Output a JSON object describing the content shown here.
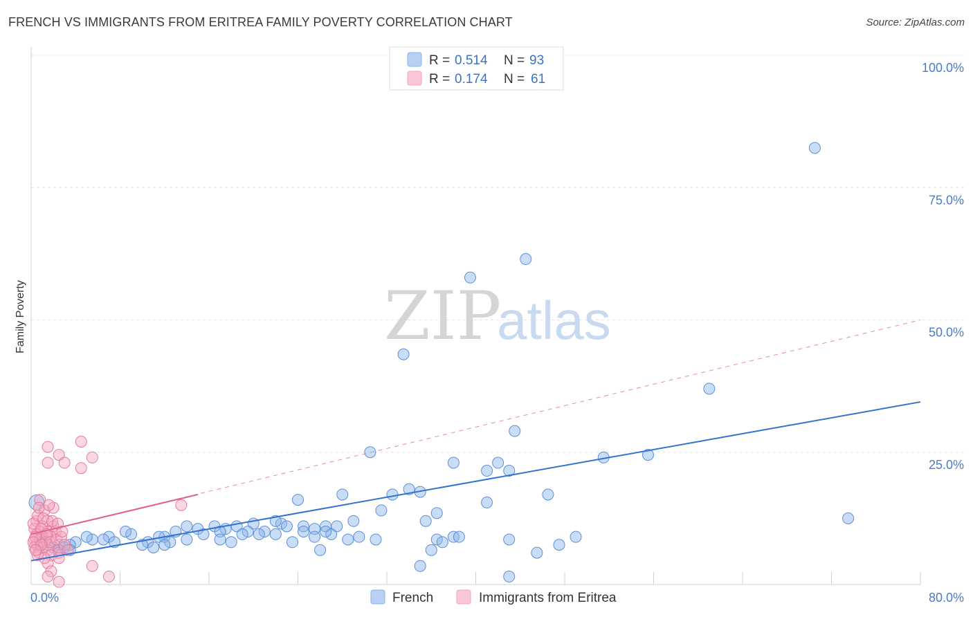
{
  "title": "FRENCH VS IMMIGRANTS FROM ERITREA FAMILY POVERTY CORRELATION CHART",
  "source": "Source: ZipAtlas.com",
  "watermark": {
    "zip": "ZIP",
    "atlas": "atlas"
  },
  "chart_data": {
    "type": "scatter",
    "title": "FRENCH VS IMMIGRANTS FROM ERITREA FAMILY POVERTY CORRELATION CHART",
    "xlabel": "",
    "ylabel": "Family Poverty",
    "xlim": [
      0,
      80
    ],
    "ylim": [
      0,
      100
    ],
    "x_tick_labels": {
      "min": "0.0%",
      "max": "80.0%"
    },
    "y_ticks": [
      {
        "value": 100,
        "label": "100.0%"
      },
      {
        "value": 75,
        "label": "75.0%"
      },
      {
        "value": 50,
        "label": "50.0%"
      },
      {
        "value": 25,
        "label": "25.0%"
      }
    ],
    "grid": true,
    "legend": [
      {
        "name": "French",
        "r_label": "R =",
        "r": "0.514",
        "n_label": "N =",
        "n": "93",
        "color": "#8ab4ea"
      },
      {
        "name": "Immigrants from Eritrea",
        "r_label": "R =",
        "r": "0.174",
        "n_label": "N =",
        "n": "61",
        "color": "#f4a6bf"
      }
    ],
    "series": [
      {
        "name": "French",
        "color": "#8ab4ea",
        "stroke": "#5b8fd6",
        "trendline": {
          "x": [
            0,
            80
          ],
          "y": [
            4.5,
            34.5
          ],
          "color": "#2f72d0"
        },
        "points": [
          [
            70.5,
            82.5
          ],
          [
            44.5,
            61.5
          ],
          [
            39.5,
            58
          ],
          [
            33.5,
            43.5
          ],
          [
            61,
            37
          ],
          [
            43.5,
            29
          ],
          [
            30.5,
            25
          ],
          [
            51.5,
            24
          ],
          [
            55.5,
            24.5
          ],
          [
            38,
            23
          ],
          [
            42,
            23
          ],
          [
            43,
            21.5
          ],
          [
            41,
            21.5
          ],
          [
            34,
            18
          ],
          [
            28,
            17
          ],
          [
            32.5,
            17
          ],
          [
            35,
            17.5
          ],
          [
            46.5,
            17
          ],
          [
            24,
            16
          ],
          [
            41,
            15.5
          ],
          [
            31.5,
            14
          ],
          [
            36.5,
            13.5
          ],
          [
            35.5,
            12
          ],
          [
            73.5,
            12.5
          ],
          [
            29,
            12
          ],
          [
            26.5,
            11
          ],
          [
            27.5,
            11
          ],
          [
            22.5,
            11.5
          ],
          [
            22,
            12
          ],
          [
            24.5,
            11
          ],
          [
            25.5,
            10.5
          ],
          [
            14,
            11
          ],
          [
            16.5,
            11
          ],
          [
            18.5,
            11
          ],
          [
            20,
            11.5
          ],
          [
            23,
            11
          ],
          [
            15,
            10.5
          ],
          [
            17.5,
            10.5
          ],
          [
            19.5,
            10
          ],
          [
            21,
            10
          ],
          [
            25.5,
            9
          ],
          [
            27,
            9.5
          ],
          [
            28.5,
            8.5
          ],
          [
            29.5,
            9
          ],
          [
            31,
            8.5
          ],
          [
            24.5,
            10
          ],
          [
            26.5,
            10
          ],
          [
            22,
            9.5
          ],
          [
            13,
            10
          ],
          [
            15.5,
            9.5
          ],
          [
            17,
            10
          ],
          [
            19,
            9.5
          ],
          [
            20.5,
            9.5
          ],
          [
            17,
            8.5
          ],
          [
            18,
            8
          ],
          [
            23.5,
            8
          ],
          [
            14,
            8.5
          ],
          [
            12,
            9
          ],
          [
            12.5,
            8
          ],
          [
            10.5,
            8
          ],
          [
            11.5,
            9
          ],
          [
            9,
            9.5
          ],
          [
            8.5,
            10
          ],
          [
            7,
            9
          ],
          [
            6.5,
            8.5
          ],
          [
            5.5,
            8.5
          ],
          [
            5,
            9
          ],
          [
            4,
            8
          ],
          [
            3.5,
            7.5
          ],
          [
            2.5,
            7.5
          ],
          [
            2,
            7
          ],
          [
            1.5,
            7.5
          ],
          [
            1,
            8
          ],
          [
            3,
            7
          ],
          [
            3.5,
            6.5
          ],
          [
            2.5,
            6.5
          ],
          [
            7.5,
            8
          ],
          [
            10,
            7.5
          ],
          [
            11,
            7
          ],
          [
            12,
            7.5
          ],
          [
            36.5,
            8.5
          ],
          [
            38,
            9
          ],
          [
            38.5,
            9
          ],
          [
            43,
            8.5
          ],
          [
            49,
            9
          ],
          [
            47.5,
            7.5
          ],
          [
            37,
            8
          ],
          [
            36,
            6.5
          ],
          [
            45.5,
            6
          ],
          [
            26,
            6.5
          ],
          [
            35,
            3.5
          ],
          [
            43,
            1.5
          ],
          [
            0.5,
            15.5
          ]
        ]
      },
      {
        "name": "Immigrants from Eritrea",
        "color": "#f4a6bf",
        "stroke": "#e57a9d",
        "trendline": {
          "x": [
            0,
            15
          ],
          "y": [
            9.5,
            17
          ],
          "color": "#e0608c"
        },
        "trendline_extended": {
          "x": [
            0,
            80
          ],
          "y": [
            9.5,
            50
          ],
          "color": "#e58aa8"
        },
        "points": [
          [
            1.5,
            26
          ],
          [
            4.5,
            27
          ],
          [
            2.5,
            24.5
          ],
          [
            5.5,
            24
          ],
          [
            1.5,
            23
          ],
          [
            3,
            23
          ],
          [
            4.5,
            22
          ],
          [
            0.8,
            16
          ],
          [
            1.2,
            14
          ],
          [
            2,
            14.5
          ],
          [
            1.5,
            12
          ],
          [
            0.5,
            12
          ],
          [
            1,
            11
          ],
          [
            2,
            11
          ],
          [
            0.3,
            10.5
          ],
          [
            0.8,
            10
          ],
          [
            1.5,
            10
          ],
          [
            2.2,
            10
          ],
          [
            0.5,
            9.5
          ],
          [
            1,
            9
          ],
          [
            1.8,
            9
          ],
          [
            0.3,
            8.5
          ],
          [
            0.8,
            8.5
          ],
          [
            1.3,
            8
          ],
          [
            0.5,
            7.5
          ],
          [
            1,
            7
          ],
          [
            2,
            7
          ],
          [
            0.3,
            7
          ],
          [
            1.5,
            6.5
          ],
          [
            0.7,
            6
          ],
          [
            2.5,
            6
          ],
          [
            1.8,
            5.5
          ],
          [
            2.5,
            5
          ],
          [
            1.5,
            4
          ],
          [
            5.5,
            3.5
          ],
          [
            1.8,
            2.5
          ],
          [
            1.5,
            1.5
          ],
          [
            7,
            1.5
          ],
          [
            2.5,
            0.5
          ],
          [
            13.5,
            15
          ],
          [
            0.2,
            11.5
          ],
          [
            0.6,
            13
          ],
          [
            1.1,
            12.5
          ],
          [
            0.9,
            10.5
          ],
          [
            0.4,
            9
          ],
          [
            1.4,
            9.5
          ],
          [
            1.7,
            8
          ],
          [
            0.2,
            8
          ],
          [
            0.9,
            7.5
          ],
          [
            2.3,
            8.5
          ],
          [
            2.7,
            9
          ],
          [
            3,
            7.5
          ],
          [
            3.3,
            6.5
          ],
          [
            0.6,
            5.5
          ],
          [
            1.2,
            5
          ],
          [
            0.4,
            6.5
          ],
          [
            1.9,
            12
          ],
          [
            2.4,
            11.5
          ],
          [
            0.7,
            14.5
          ],
          [
            1.6,
            15
          ],
          [
            2.8,
            10
          ]
        ]
      }
    ]
  }
}
